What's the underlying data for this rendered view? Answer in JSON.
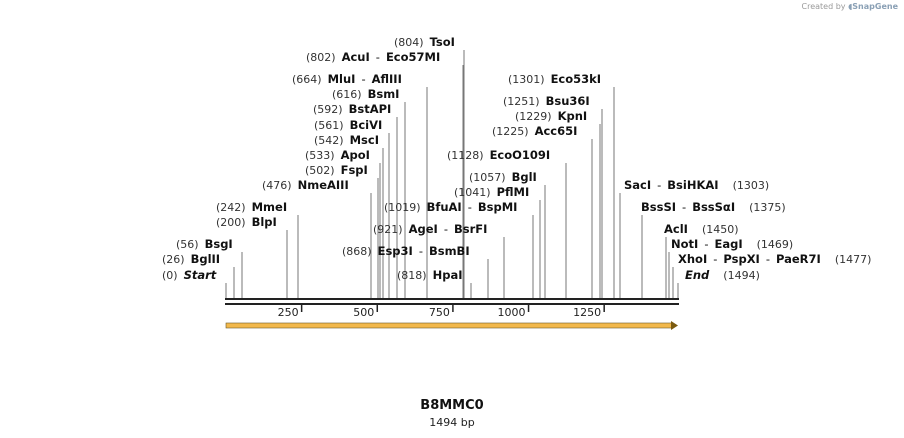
{
  "watermark": {
    "prefix": "Created by",
    "brand": "SnapGene"
  },
  "construct": {
    "name": "B8MMC0",
    "length_label": "1494 bp",
    "length": 1494
  },
  "ruler": {
    "ticks": [
      250,
      500,
      750,
      1000,
      1250
    ]
  },
  "features": [
    {
      "name": "feature-arrow",
      "start": 1,
      "end": 1494,
      "color": "#f2b84b",
      "direction": "forward"
    }
  ],
  "sites": [
    {
      "pos": 804,
      "label_pos": "(804)",
      "enzymes": [
        "TsoI"
      ]
    },
    {
      "pos": 802,
      "label_pos": "(802)",
      "enzymes": [
        "AcuI",
        "Eco57MI"
      ]
    },
    {
      "pos": 664,
      "label_pos": "(664)",
      "enzymes": [
        "MluI",
        "AflIII"
      ]
    },
    {
      "pos": 616,
      "label_pos": "(616)",
      "enzymes": [
        "BsmI"
      ]
    },
    {
      "pos": 592,
      "label_pos": "(592)",
      "enzymes": [
        "BstAPI"
      ]
    },
    {
      "pos": 561,
      "label_pos": "(561)",
      "enzymes": [
        "BciVI"
      ]
    },
    {
      "pos": 542,
      "label_pos": "(542)",
      "enzymes": [
        "MscI"
      ]
    },
    {
      "pos": 533,
      "label_pos": "(533)",
      "enzymes": [
        "ApoI"
      ]
    },
    {
      "pos": 502,
      "label_pos": "(502)",
      "enzymes": [
        "FspI"
      ]
    },
    {
      "pos": 476,
      "label_pos": "(476)",
      "enzymes": [
        "NmeAIII"
      ]
    },
    {
      "pos": 242,
      "label_pos": "(242)",
      "enzymes": [
        "MmeI"
      ]
    },
    {
      "pos": 200,
      "label_pos": "(200)",
      "enzymes": [
        "BlpI"
      ]
    },
    {
      "pos": 56,
      "label_pos": "(56)",
      "enzymes": [
        "BsgI"
      ]
    },
    {
      "pos": 26,
      "label_pos": "(26)",
      "enzymes": [
        "BglII"
      ]
    },
    {
      "pos": 0,
      "label_pos": "(0)",
      "enzymes": [
        "Start"
      ],
      "italic": true
    },
    {
      "pos": 1019,
      "label_pos": "(1019)",
      "enzymes": [
        "BfuAI",
        "BspMI"
      ]
    },
    {
      "pos": 921,
      "label_pos": "(921)",
      "enzymes": [
        "AgeI",
        "BsrFI"
      ]
    },
    {
      "pos": 868,
      "label_pos": "(868)",
      "enzymes": [
        "Esp3I",
        "BsmBI"
      ]
    },
    {
      "pos": 818,
      "label_pos": "(818)",
      "enzymes": [
        "HpaI"
      ]
    },
    {
      "pos": 1128,
      "label_pos": "(1128)",
      "enzymes": [
        "EcoO109I"
      ]
    },
    {
      "pos": 1057,
      "label_pos": "(1057)",
      "enzymes": [
        "BglI"
      ]
    },
    {
      "pos": 1041,
      "label_pos": "(1041)",
      "enzymes": [
        "PflMI"
      ]
    },
    {
      "pos": 1301,
      "label_pos": "(1301)",
      "enzymes": [
        "Eco53kI"
      ]
    },
    {
      "pos": 1251,
      "label_pos": "(1251)",
      "enzymes": [
        "Bsu36I"
      ]
    },
    {
      "pos": 1229,
      "label_pos": "(1229)",
      "enzymes": [
        "KpnI"
      ]
    },
    {
      "pos": 1225,
      "label_pos": "(1225)",
      "enzymes": [
        "Acc65I"
      ]
    },
    {
      "pos": 1303,
      "label_pos": "(1303)",
      "enzymes": [
        "SacI",
        "BsiHKAI"
      ],
      "pos_after": true
    },
    {
      "pos": 1375,
      "label_pos": "(1375)",
      "enzymes": [
        "BssSI",
        "BssSαI"
      ],
      "pos_after": true
    },
    {
      "pos": 1450,
      "label_pos": "(1450)",
      "enzymes": [
        "AclI"
      ],
      "pos_after": true
    },
    {
      "pos": 1469,
      "label_pos": "(1469)",
      "enzymes": [
        "NotI",
        "EagI"
      ],
      "pos_after": true
    },
    {
      "pos": 1477,
      "label_pos": "(1477)",
      "enzymes": [
        "XhoI",
        "PspXI",
        "PaeR7I"
      ],
      "pos_after": true
    },
    {
      "pos": 1494,
      "label_pos": "(1494)",
      "enzymes": [
        "End"
      ],
      "italic": true,
      "pos_after": true
    }
  ]
}
